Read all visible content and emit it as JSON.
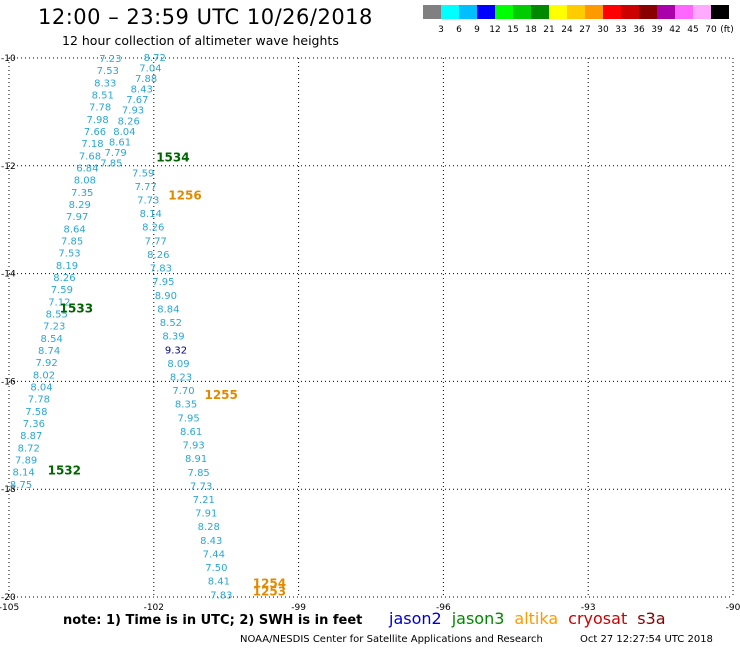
{
  "header": {
    "title": "12:00 – 23:59 UTC 10/26/2018",
    "subtitle": "12 hour collection of altimeter wave heights"
  },
  "colorbar": {
    "colors": [
      "#808080",
      "#00ffff",
      "#00bfff",
      "#0000ff",
      "#00ff00",
      "#00cc00",
      "#008800",
      "#ffff00",
      "#ffcc00",
      "#ff9900",
      "#ff0000",
      "#cc0000",
      "#880000",
      "#aa00aa",
      "#ff66ff",
      "#ffaaff",
      "#000000"
    ],
    "labels": [
      "3",
      "6",
      "9",
      "12",
      "15",
      "18",
      "21",
      "24",
      "27",
      "30",
      "33",
      "36",
      "39",
      "42",
      "45",
      "70",
      "(ft)"
    ]
  },
  "chart_data": {
    "type": "scatter",
    "xlim": [
      -105,
      -90
    ],
    "ylim": [
      -20,
      -10
    ],
    "x_ticks": [
      "-105",
      "-102",
      "-99",
      "-96",
      "-93",
      "-90"
    ],
    "y_ticks": [
      "-10",
      "-12",
      "-14",
      "-16",
      "-18",
      "-20"
    ],
    "grid": true,
    "tracks": [
      {
        "id": "track-a",
        "color": "#2aa7d6",
        "start": [
          -101.98,
          -9.98
        ],
        "end": [
          -102.88,
          -11.94
        ],
        "values": [
          "8.72",
          "7.04",
          "7.88",
          "8.43",
          "7.67",
          "7.93",
          "8.26",
          "8.04",
          "8.61",
          "7.79",
          "7.85"
        ]
      },
      {
        "id": "track-b",
        "color": "#2aa7d6",
        "start": [
          -102.9,
          -10.0
        ],
        "end": [
          -104.75,
          -17.9
        ],
        "values": [
          "7.23",
          "7.53",
          "8.33",
          "8.51",
          "7.78",
          "7.98",
          "7.66",
          "7.18",
          "7.68",
          "6.84",
          "8.08",
          "7.35",
          "8.29",
          "7.97",
          "8.64",
          "7.85",
          "7.53",
          "8.19",
          "8.26",
          "7.59",
          "7.12",
          "8.55",
          "7.23",
          "8.54",
          "8.74",
          "7.92",
          "8.02",
          "8.04",
          "7.78",
          "7.58",
          "7.36",
          "8.87",
          "8.72",
          "7.89",
          "8.14",
          "8.75"
        ]
      },
      {
        "id": "track-c",
        "color": "#2aa7d6",
        "start": [
          -102.22,
          -12.12
        ],
        "end": [
          -100.6,
          -19.95
        ],
        "values": [
          "7.59",
          "7.77",
          "7.73",
          "8.14",
          "8.26",
          "7.77",
          "8.26",
          "7.83",
          "7.95",
          "8.90",
          "8.84",
          "8.52",
          "8.39",
          "9.32",
          "8.09",
          "8.23",
          "7.70",
          "8.35",
          "7.95",
          "8.61",
          "7.93",
          "8.91",
          "7.85",
          "7.73",
          "7.21",
          "7.91",
          "8.28",
          "8.43",
          "7.44",
          "7.50",
          "8.41",
          "7.83"
        ]
      }
    ],
    "highlight": {
      "value": "9.32",
      "color": "#00008b"
    },
    "time_labels": [
      {
        "label": "1534",
        "color": "#006400",
        "x": -101.95,
        "y": -11.85
      },
      {
        "label": "1256",
        "color": "#e08a00",
        "x": -101.7,
        "y": -12.55
      },
      {
        "label": "1533",
        "color": "#006400",
        "x": -103.95,
        "y": -14.65
      },
      {
        "label": "1255",
        "color": "#e08a00",
        "x": -100.95,
        "y": -16.25
      },
      {
        "label": "1532",
        "color": "#006400",
        "x": -104.2,
        "y": -17.65
      },
      {
        "label": "1254",
        "color": "#e08a00",
        "x": -99.95,
        "y": -19.75
      },
      {
        "label": "1253",
        "color": "#e08a00",
        "x": -99.95,
        "y": -19.9
      }
    ]
  },
  "note": "note: 1) Time is in UTC; 2) SWH is in feet",
  "satellites": [
    {
      "name": "jason2",
      "color": "#0000cc"
    },
    {
      "name": "jason3",
      "color": "#008800"
    },
    {
      "name": "altika",
      "color": "#ff9900"
    },
    {
      "name": "cryosat",
      "color": "#cc0000"
    },
    {
      "name": "s3a",
      "color": "#880000"
    }
  ],
  "footer": "NOAA/NESDIS Center for Satellite Applications and Research",
  "footer_timestamp": "Oct 27 12:27:54 UTC 2018"
}
